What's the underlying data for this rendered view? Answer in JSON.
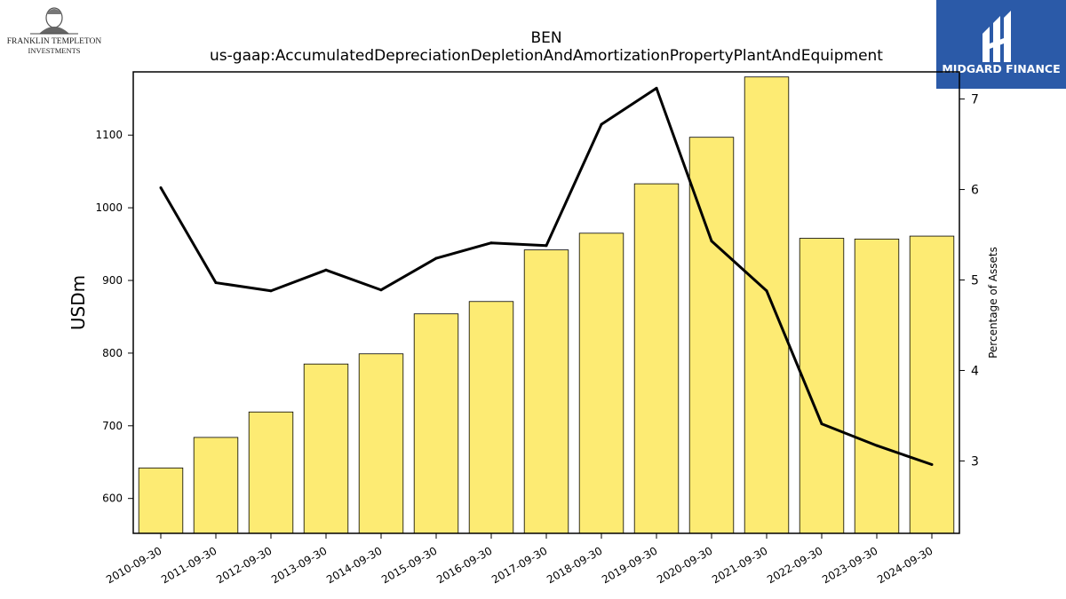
{
  "logos": {
    "left_line1": "FRANKLIN TEMPLETON",
    "left_line2": "INVESTMENTS",
    "right_text": "MIDGARD FINANCE"
  },
  "chart_data": {
    "type": "bar",
    "title": "BEN",
    "subtitle": "us-gaap:AccumulatedDepreciationDepletionAndAmortizationPropertyPlantAndEquipment",
    "ylabel": "USDm",
    "y2label": "Percentage of Assets",
    "categories": [
      "2010-09-30",
      "2011-09-30",
      "2012-09-30",
      "2013-09-30",
      "2014-09-30",
      "2015-09-30",
      "2016-09-30",
      "2017-09-30",
      "2018-09-30",
      "2019-09-30",
      "2020-09-30",
      "2021-09-30",
      "2022-09-30",
      "2023-09-30",
      "2024-09-30"
    ],
    "series": [
      {
        "values": [
          642,
          684,
          719,
          785,
          799,
          854,
          871,
          942,
          965,
          1033,
          1097,
          1180,
          958,
          957,
          961
        ],
        "color": "#fdeb73"
      },
      {
        "values": [
          6.02,
          4.97,
          4.88,
          5.11,
          4.89,
          5.24,
          5.41,
          5.38,
          6.72,
          7.12,
          5.43,
          4.88,
          3.41,
          3.17,
          2.96
        ],
        "color": "#000000"
      }
    ],
    "ylim": [
      552,
      1187
    ],
    "y2lim": [
      2.2,
      7.3
    ],
    "yticks": [
      600,
      700,
      800,
      900,
      1000,
      1100
    ],
    "y2ticks": [
      3,
      4,
      5,
      6,
      7
    ],
    "grid": false
  }
}
